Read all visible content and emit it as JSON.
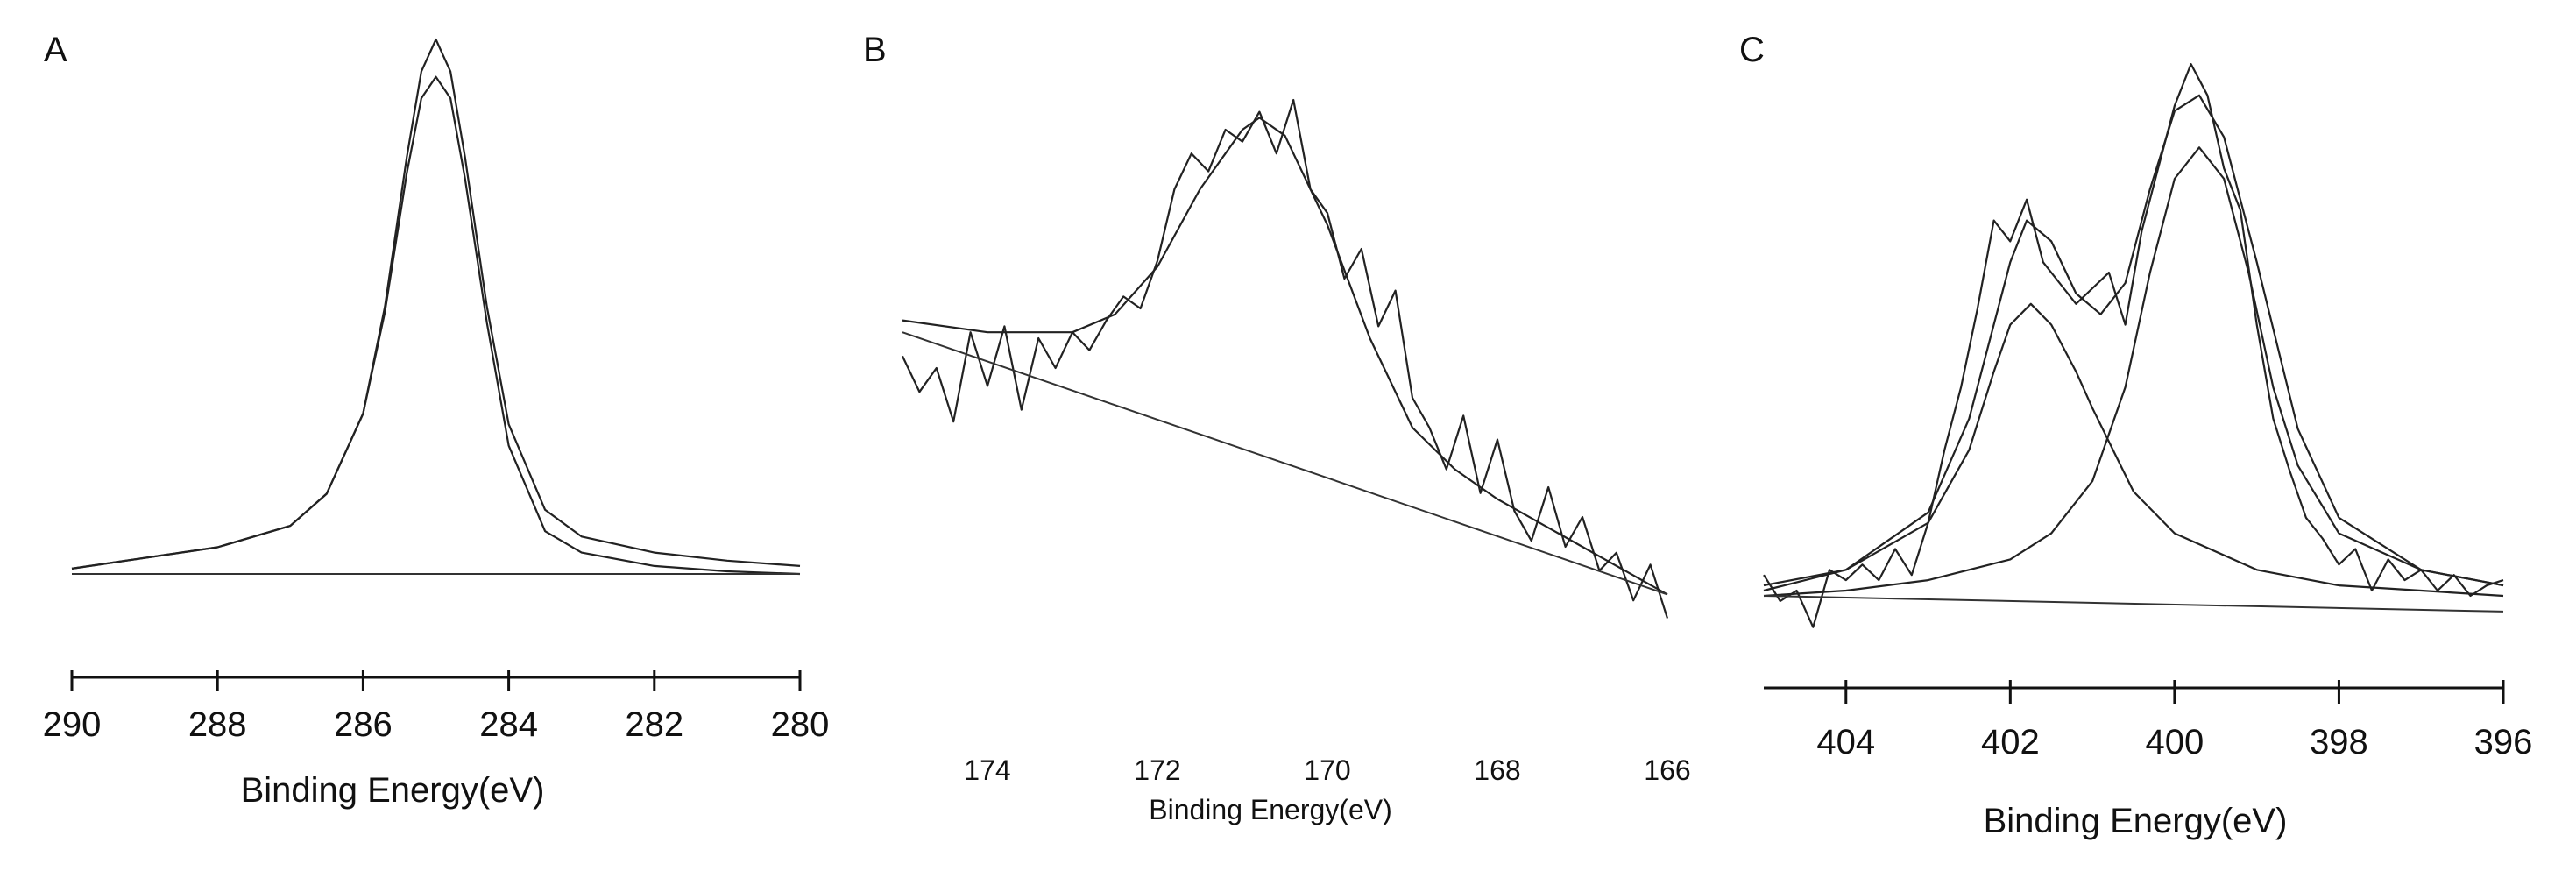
{
  "figure": {
    "panels": [
      "A",
      "B",
      "C"
    ]
  },
  "chart_data": [
    {
      "panel": "A",
      "type": "line",
      "xlabel": "Binding Energy(eV)",
      "ylabel": "",
      "xlim": [
        290,
        280
      ],
      "x_reversed": true,
      "xticks": [
        290,
        288,
        286,
        284,
        282,
        280
      ],
      "grid": false,
      "series": [
        {
          "kind": "raw",
          "x": [
            290,
            288,
            287,
            286.5,
            286,
            285.7,
            285.4,
            285.2,
            285.0,
            284.8,
            284.6,
            284.3,
            284.0,
            283.5,
            283,
            282,
            281,
            280
          ],
          "y": [
            0.01,
            0.05,
            0.09,
            0.15,
            0.3,
            0.5,
            0.78,
            0.94,
            1.0,
            0.94,
            0.78,
            0.5,
            0.28,
            0.12,
            0.07,
            0.04,
            0.025,
            0.015
          ]
        },
        {
          "kind": "fit",
          "x": [
            290,
            288,
            287,
            286.5,
            286,
            285.7,
            285.4,
            285.2,
            285.0,
            284.8,
            284.6,
            284.3,
            284.0,
            283.5,
            283,
            282,
            281,
            280
          ],
          "y": [
            0.01,
            0.05,
            0.09,
            0.15,
            0.3,
            0.49,
            0.75,
            0.89,
            0.93,
            0.89,
            0.74,
            0.47,
            0.24,
            0.08,
            0.04,
            0.015,
            0.005,
            0.0
          ]
        },
        {
          "kind": "baseline",
          "x": [
            290,
            280
          ],
          "y": [
            0.0,
            0.0
          ]
        }
      ]
    },
    {
      "panel": "B",
      "type": "line",
      "xlabel": "Binding Energy(eV)",
      "ylabel": "",
      "xlim": [
        175,
        166
      ],
      "x_reversed": true,
      "xticks": [
        174,
        172,
        170,
        168,
        166
      ],
      "grid": false,
      "series": [
        {
          "kind": "raw",
          "x": [
            175,
            174.8,
            174.6,
            174.4,
            174.2,
            174.0,
            173.8,
            173.6,
            173.4,
            173.2,
            173.0,
            172.8,
            172.6,
            172.4,
            172.2,
            172.0,
            171.8,
            171.6,
            171.4,
            171.2,
            171.0,
            170.8,
            170.6,
            170.4,
            170.2,
            170.0,
            169.8,
            169.6,
            169.4,
            169.2,
            169.0,
            168.8,
            168.6,
            168.4,
            168.2,
            168.0,
            167.8,
            167.6,
            167.4,
            167.2,
            167.0,
            166.8,
            166.6,
            166.4,
            166.2,
            166.0
          ],
          "y": [
            0.52,
            0.46,
            0.5,
            0.41,
            0.56,
            0.47,
            0.57,
            0.43,
            0.55,
            0.5,
            0.56,
            0.53,
            0.58,
            0.62,
            0.6,
            0.68,
            0.8,
            0.86,
            0.83,
            0.9,
            0.88,
            0.93,
            0.86,
            0.95,
            0.8,
            0.76,
            0.65,
            0.7,
            0.57,
            0.63,
            0.45,
            0.4,
            0.33,
            0.42,
            0.29,
            0.38,
            0.26,
            0.21,
            0.3,
            0.2,
            0.25,
            0.16,
            0.19,
            0.11,
            0.17,
            0.08
          ]
        },
        {
          "kind": "fit",
          "x": [
            175,
            174,
            173,
            172.5,
            172,
            171.5,
            171.0,
            170.8,
            170.5,
            170,
            169.5,
            169,
            168.5,
            168,
            167.5,
            167,
            166.5,
            166
          ],
          "y": [
            0.58,
            0.56,
            0.56,
            0.59,
            0.67,
            0.8,
            0.9,
            0.92,
            0.89,
            0.74,
            0.55,
            0.4,
            0.33,
            0.28,
            0.24,
            0.2,
            0.16,
            0.12
          ]
        },
        {
          "kind": "baseline",
          "x": [
            175,
            166
          ],
          "y": [
            0.56,
            0.12
          ]
        }
      ]
    },
    {
      "panel": "C",
      "type": "line",
      "xlabel": "Binding Energy(eV)",
      "ylabel": "",
      "xlim": [
        405,
        396
      ],
      "x_reversed": true,
      "xticks": [
        404,
        402,
        400,
        398,
        396
      ],
      "grid": false,
      "series": [
        {
          "kind": "raw",
          "x": [
            405,
            404.8,
            404.6,
            404.4,
            404.2,
            404.0,
            403.8,
            403.6,
            403.4,
            403.2,
            403.0,
            402.8,
            402.6,
            402.4,
            402.2,
            402.0,
            401.8,
            401.6,
            401.4,
            401.2,
            401.0,
            400.8,
            400.6,
            400.4,
            400.2,
            400.0,
            399.8,
            399.6,
            399.4,
            399.2,
            399.0,
            398.8,
            398.6,
            398.4,
            398.2,
            398.0,
            397.8,
            397.6,
            397.4,
            397.2,
            397.0,
            396.8,
            396.6,
            396.4,
            396.2,
            396.0
          ],
          "y": [
            0.04,
            -0.01,
            0.01,
            -0.06,
            0.05,
            0.03,
            0.06,
            0.03,
            0.09,
            0.04,
            0.14,
            0.28,
            0.4,
            0.55,
            0.72,
            0.68,
            0.76,
            0.64,
            0.6,
            0.56,
            0.59,
            0.62,
            0.52,
            0.7,
            0.82,
            0.94,
            1.02,
            0.96,
            0.82,
            0.74,
            0.52,
            0.34,
            0.24,
            0.15,
            0.11,
            0.06,
            0.09,
            0.01,
            0.07,
            0.03,
            0.05,
            0.01,
            0.04,
            0.0,
            0.02,
            0.03
          ]
        },
        {
          "kind": "fit",
          "x": [
            405,
            404,
            403,
            402.5,
            402,
            401.8,
            401.5,
            401.2,
            400.9,
            400.6,
            400.3,
            400.0,
            399.7,
            399.4,
            399.0,
            398.5,
            398,
            397,
            396
          ],
          "y": [
            0.02,
            0.05,
            0.16,
            0.34,
            0.64,
            0.72,
            0.68,
            0.58,
            0.54,
            0.6,
            0.78,
            0.93,
            0.96,
            0.88,
            0.64,
            0.32,
            0.15,
            0.05,
            0.02
          ]
        },
        {
          "kind": "component",
          "x": [
            405,
            404,
            403,
            402.5,
            402.2,
            402.0,
            401.75,
            401.5,
            401.2,
            401.0,
            400.5,
            400,
            399,
            398,
            397,
            396
          ],
          "y": [
            0.01,
            0.05,
            0.14,
            0.28,
            0.43,
            0.52,
            0.56,
            0.52,
            0.43,
            0.36,
            0.2,
            0.12,
            0.05,
            0.02,
            0.01,
            0.0
          ]
        },
        {
          "kind": "component",
          "x": [
            405,
            404,
            403,
            402,
            401.5,
            401,
            400.6,
            400.3,
            400.0,
            399.7,
            399.4,
            399.1,
            398.8,
            398.5,
            398,
            397,
            396
          ],
          "y": [
            0.0,
            0.01,
            0.03,
            0.07,
            0.12,
            0.22,
            0.4,
            0.62,
            0.8,
            0.86,
            0.8,
            0.62,
            0.4,
            0.25,
            0.12,
            0.05,
            0.02
          ]
        },
        {
          "kind": "baseline",
          "x": [
            405,
            396
          ],
          "y": [
            0.0,
            -0.03
          ]
        }
      ]
    }
  ]
}
